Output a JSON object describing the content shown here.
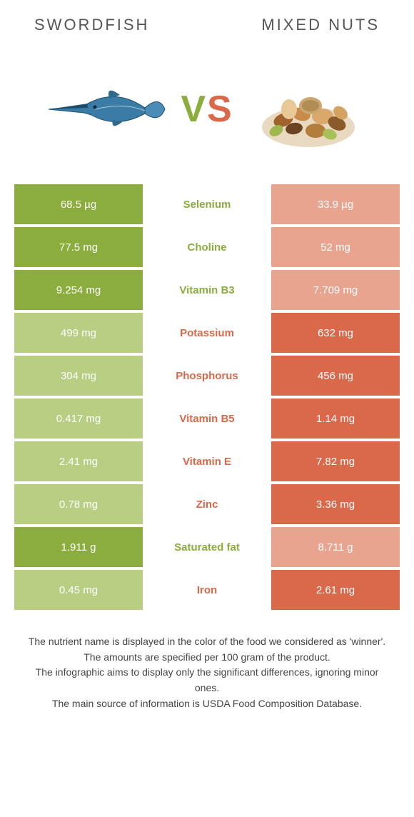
{
  "header": {
    "left_title": "Swordfish",
    "right_title": "Mixed nuts"
  },
  "vs": {
    "v_color": "#8aad3e",
    "s_color": "#d9694a"
  },
  "colors": {
    "left_win": "#8aad3e",
    "left_lose": "#b8ce82",
    "right_win": "#d9694a",
    "right_lose": "#e8a48f",
    "background": "#ffffff"
  },
  "table": {
    "rows": [
      {
        "left": "68.5 µg",
        "name": "Selenium",
        "right": "33.9 µg",
        "winner": "left"
      },
      {
        "left": "77.5 mg",
        "name": "Choline",
        "right": "52 mg",
        "winner": "left"
      },
      {
        "left": "9.254 mg",
        "name": "Vitamin B3",
        "right": "7.709 mg",
        "winner": "left"
      },
      {
        "left": "499 mg",
        "name": "Potassium",
        "right": "632 mg",
        "winner": "right"
      },
      {
        "left": "304 mg",
        "name": "Phosphorus",
        "right": "456 mg",
        "winner": "right"
      },
      {
        "left": "0.417 mg",
        "name": "Vitamin B5",
        "right": "1.14 mg",
        "winner": "right"
      },
      {
        "left": "2.41 mg",
        "name": "Vitamin E",
        "right": "7.82 mg",
        "winner": "right"
      },
      {
        "left": "0.78 mg",
        "name": "Zinc",
        "right": "3.36 mg",
        "winner": "right"
      },
      {
        "left": "1.911 g",
        "name": "Saturated fat",
        "right": "8.711 g",
        "winner": "left"
      },
      {
        "left": "0.45 mg",
        "name": "Iron",
        "right": "2.61 mg",
        "winner": "right"
      }
    ]
  },
  "footer": {
    "line1": "The nutrient name is displayed in the color of the food we considered as 'winner'.",
    "line2": "The amounts are specified per 100 gram of the product.",
    "line3": "The infographic aims to display only the significant differences, ignoring minor ones.",
    "line4": "The main source of information is USDA Food Composition Database."
  }
}
